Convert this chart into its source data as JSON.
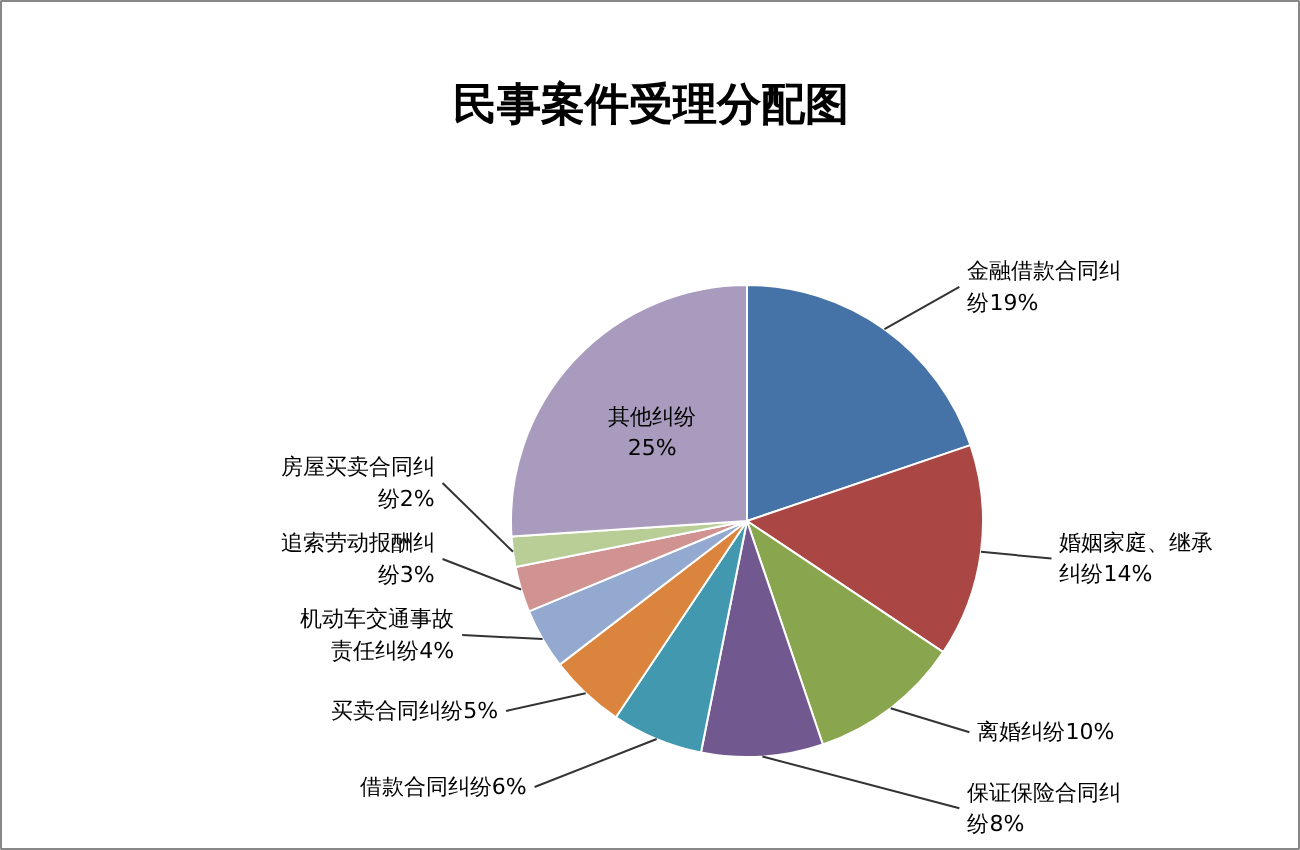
{
  "chart_data": {
    "type": "pie",
    "title": "民事案件受理分配图",
    "categories": [
      "金融借款合同纠纷",
      "婚姻家庭、继承纠纷",
      "离婚纠纷",
      "保证保险合同纠纷",
      "借款合同纠纷",
      "买卖合同纠纷",
      "机动车交通事故责任纠纷",
      "追索劳动报酬纠纷",
      "房屋买卖合同纠纷",
      "其他纠纷"
    ],
    "values": [
      19,
      14,
      10,
      8,
      6,
      5,
      4,
      3,
      2,
      25
    ],
    "value_labels": [
      "19%",
      "14%",
      "10%",
      "8%",
      "6%",
      "5%",
      "4%",
      "3%",
      "2%",
      "25%"
    ],
    "colors": [
      "#4572a7",
      "#aa4643",
      "#89a54e",
      "#71588f",
      "#4198af",
      "#db843d",
      "#93a9cf",
      "#d19392",
      "#b9cd96",
      "#a99bbd"
    ]
  }
}
